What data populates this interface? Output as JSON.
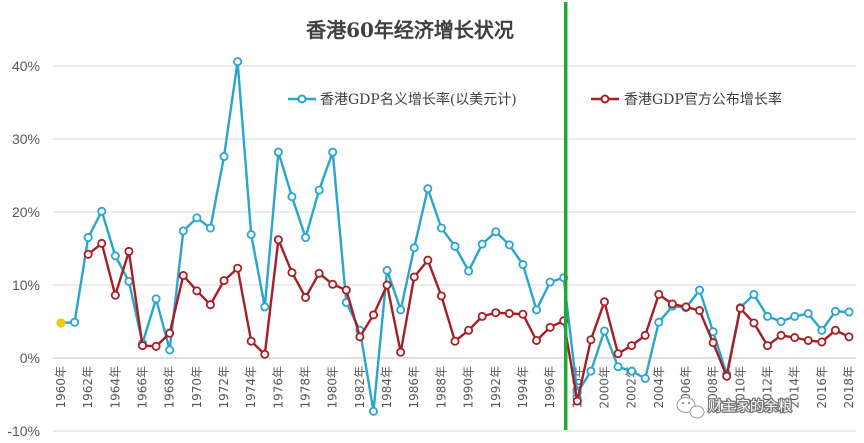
{
  "chart_data": {
    "type": "line",
    "title": "香港60年经济增长状况",
    "x": [
      "1960年",
      "1961年",
      "1962年",
      "1963年",
      "1964年",
      "1965年",
      "1966年",
      "1967年",
      "1968年",
      "1969年",
      "1970年",
      "1971年",
      "1972年",
      "1973年",
      "1974年",
      "1975年",
      "1976年",
      "1977年",
      "1978年",
      "1979年",
      "1980年",
      "1981年",
      "1982年",
      "1983年",
      "1984年",
      "1985年",
      "1986年",
      "1987年",
      "1988年",
      "1989年",
      "1990年",
      "1991年",
      "1992年",
      "1993年",
      "1994年",
      "1995年",
      "1996年",
      "1997年",
      "1998年",
      "1999年",
      "2000年",
      "2001年",
      "2002年",
      "2003年",
      "2004年",
      "2005年",
      "2006年",
      "2007年",
      "2008年",
      "2009年",
      "2010年",
      "2011年",
      "2012年",
      "2013年",
      "2014年",
      "2015年",
      "2016年",
      "2017年",
      "2018年"
    ],
    "x_tick_labels": [
      "1960年",
      "1962年",
      "1964年",
      "1966年",
      "1968年",
      "1970年",
      "1972年",
      "1974年",
      "1976年",
      "1978年",
      "1980年",
      "1982年",
      "1984年",
      "1986年",
      "1988年",
      "1990年",
      "1992年",
      "1994年",
      "1996年",
      "1998年",
      "2000年",
      "2002年",
      "2004年",
      "2006年",
      "2008年",
      "2010年",
      "2012年",
      "2014年",
      "2016年",
      "2018年"
    ],
    "y_ticks": [
      "-10%",
      "0%",
      "10%",
      "20%",
      "30%",
      "40%"
    ],
    "ylim": [
      -10,
      45
    ],
    "y_unit": "%",
    "grid": true,
    "legend_placement": "top-right",
    "series": [
      {
        "name": "香港GDP名义增长率(以美元计)",
        "color": "#2aa5cd",
        "values": [
          4.8,
          4.9,
          16.5,
          20.1,
          14.0,
          10.5,
          2.0,
          8.1,
          1.1,
          17.4,
          19.2,
          17.8,
          27.6,
          40.6,
          16.9,
          7.0,
          28.2,
          22.1,
          16.5,
          23.0,
          28.2,
          7.6,
          3.8,
          -7.3,
          12.0,
          6.6,
          15.1,
          23.2,
          17.8,
          15.3,
          11.9,
          15.6,
          17.3,
          15.5,
          12.8,
          6.6,
          10.4,
          11.0,
          -4.8,
          -1.8,
          3.7,
          -1.2,
          -1.8,
          -2.8,
          4.9,
          7.1,
          6.9,
          9.3,
          3.6,
          -2.2,
          6.9,
          8.7,
          5.7,
          5.0,
          5.7,
          6.1,
          3.8,
          6.4,
          6.3
        ]
      },
      {
        "name": "香港GDP官方公布增长率",
        "color": "#a51f25",
        "values": [
          null,
          null,
          14.2,
          15.7,
          8.6,
          14.6,
          1.7,
          1.6,
          3.4,
          11.3,
          9.2,
          7.3,
          10.6,
          12.3,
          2.3,
          0.5,
          16.2,
          11.7,
          8.3,
          11.6,
          10.1,
          9.3,
          2.9,
          5.9,
          10.0,
          0.8,
          11.1,
          13.4,
          8.5,
          2.3,
          3.8,
          5.7,
          6.2,
          6.1,
          6.0,
          2.4,
          4.2,
          5.1,
          -5.9,
          2.5,
          7.7,
          0.6,
          1.7,
          3.1,
          8.7,
          7.4,
          7.0,
          6.5,
          2.1,
          -2.5,
          6.8,
          4.8,
          1.7,
          3.1,
          2.8,
          2.4,
          2.2,
          3.8,
          2.9
        ]
      }
    ],
    "extra_points": [
      {
        "x": "1960年",
        "value": 4.8,
        "color": "#f5c518"
      }
    ],
    "annotations": [
      {
        "type": "vertical-line",
        "x": "1997年",
        "color": "#1fa833"
      }
    ]
  },
  "watermark": {
    "text": "财主家的余粮",
    "icon": "chat-bubble-icon"
  }
}
